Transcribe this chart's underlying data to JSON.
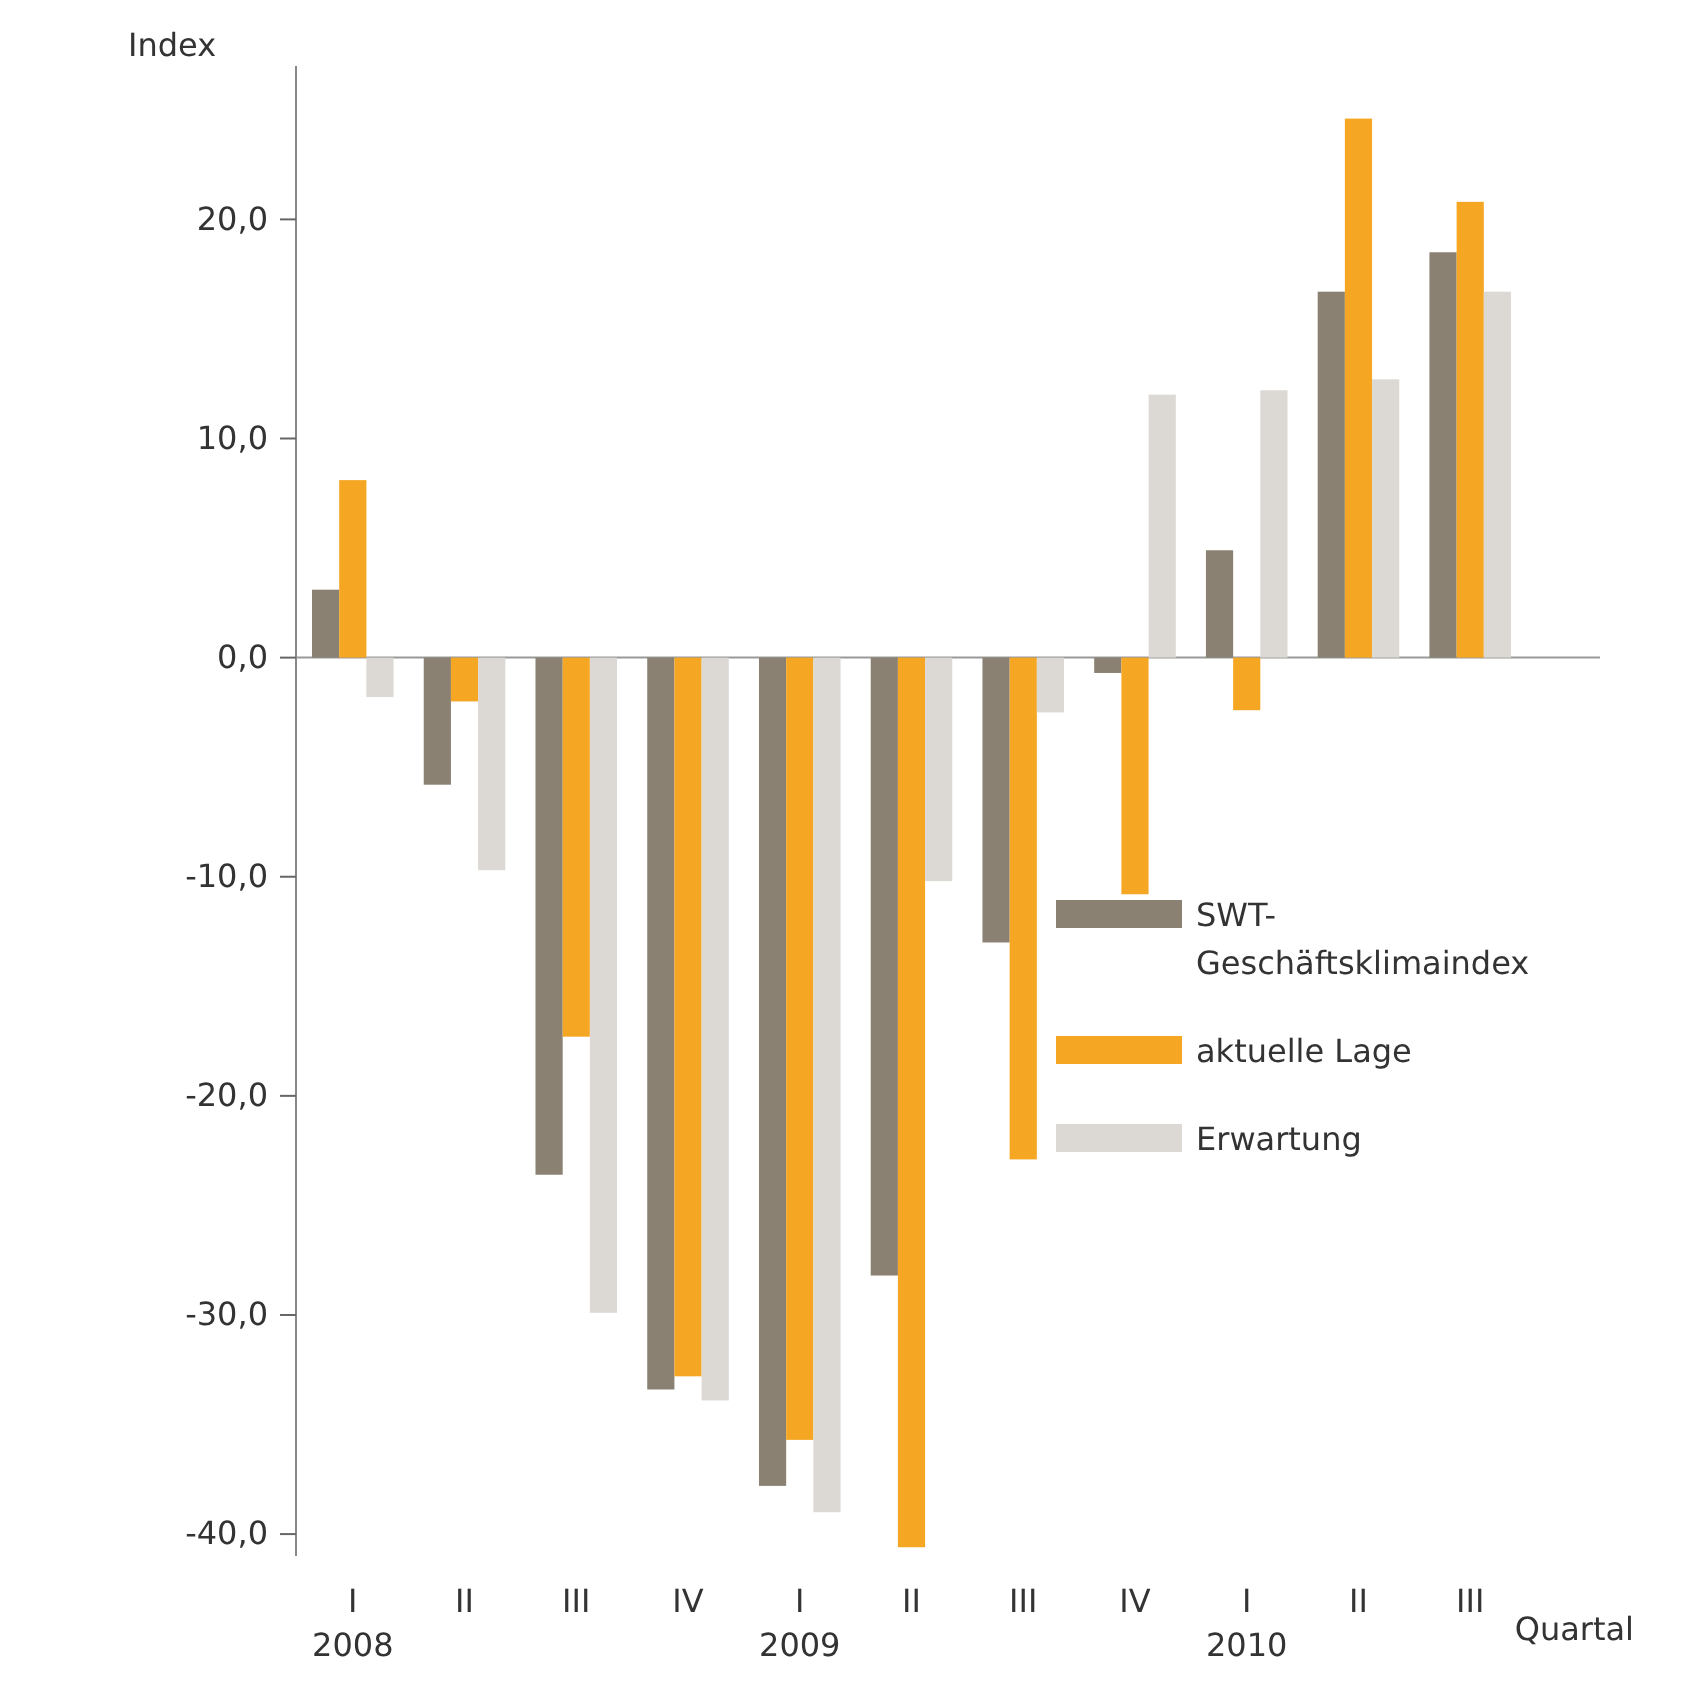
{
  "chart_data": {
    "type": "bar",
    "categories": [
      "I\n2008",
      "II",
      "III",
      "IV",
      "I\n2009",
      "II",
      "III",
      "IV",
      "I\n2010",
      "II",
      "III"
    ],
    "series": [
      {
        "name": "SWT-\nGeschäftsklimaindex",
        "color": "#8a8172",
        "values": [
          3.1,
          -5.8,
          -23.6,
          -33.4,
          -37.8,
          -28.2,
          -13.0,
          -0.7,
          4.9,
          16.7,
          18.5
        ]
      },
      {
        "name": "aktuelle Lage",
        "color": "#f5a623",
        "values": [
          8.1,
          -2.0,
          -17.3,
          -32.8,
          -35.7,
          -40.6,
          -22.9,
          -10.8,
          -2.4,
          24.6,
          20.8
        ]
      },
      {
        "name": "Erwartung",
        "color": "#dcd8d4",
        "values": [
          -1.8,
          -9.7,
          -29.9,
          -33.9,
          -39.0,
          -10.2,
          -2.5,
          12.0,
          12.2,
          12.7,
          16.7
        ]
      }
    ],
    "ylabel": "Index",
    "xlabel": "Quartal",
    "ylim": [
      -41,
      27
    ],
    "yticks": [
      {
        "value": -40,
        "label": "-40,0"
      },
      {
        "value": -30,
        "label": "-30,0"
      },
      {
        "value": -20,
        "label": "-20,0"
      },
      {
        "value": -10,
        "label": "-10,0"
      },
      {
        "value": 0,
        "label": "0,0"
      },
      {
        "value": 10,
        "label": "10,0"
      },
      {
        "value": 20,
        "label": "20,0"
      }
    ],
    "legend": "right"
  }
}
